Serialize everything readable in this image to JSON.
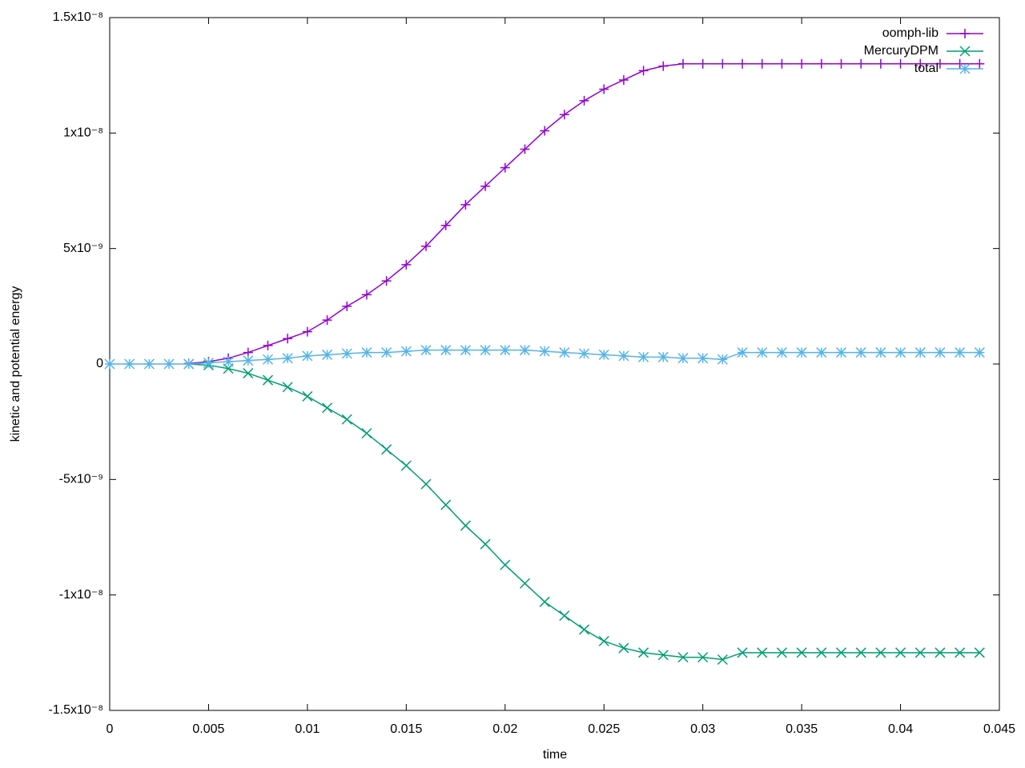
{
  "chart_data": {
    "type": "line",
    "x_label": "time",
    "y_label": "kinetic and potential energy",
    "x": [
      0,
      0.001,
      0.002,
      0.003,
      0.004,
      0.005,
      0.006,
      0.007,
      0.008,
      0.009,
      0.01,
      0.011,
      0.012,
      0.013,
      0.014,
      0.015,
      0.016,
      0.017,
      0.018,
      0.019,
      0.02,
      0.021,
      0.022,
      0.023,
      0.024,
      0.025,
      0.026,
      0.027,
      0.028,
      0.029,
      0.03,
      0.031,
      0.032,
      0.033,
      0.034,
      0.035,
      0.036,
      0.037,
      0.038,
      0.039,
      0.04,
      0.041,
      0.042,
      0.043,
      0.044
    ],
    "series": [
      {
        "name": "oomph-lib",
        "color": "#9400d3",
        "marker": "plus",
        "values": [
          null,
          null,
          null,
          null,
          2e-11,
          1e-10,
          2.5e-10,
          5e-10,
          8e-10,
          1.1e-09,
          1.4e-09,
          1.9e-09,
          2.5e-09,
          3e-09,
          3.6e-09,
          4.3e-09,
          5.1e-09,
          6e-09,
          6.9e-09,
          7.7e-09,
          8.5e-09,
          9.3e-09,
          1.01e-08,
          1.08e-08,
          1.14e-08,
          1.19e-08,
          1.23e-08,
          1.27e-08,
          1.29e-08,
          1.3e-08,
          1.3e-08,
          1.3e-08,
          1.3e-08,
          1.3e-08,
          1.3e-08,
          1.3e-08,
          1.3e-08,
          1.3e-08,
          1.3e-08,
          1.3e-08,
          1.3e-08,
          1.3e-08,
          1.3e-08,
          1.3e-08,
          1.3e-08
        ]
      },
      {
        "name": "MercuryDPM",
        "color": "#009e73",
        "marker": "cross",
        "values": [
          null,
          null,
          null,
          null,
          0,
          -5e-11,
          -2e-10,
          -4e-10,
          -7e-10,
          -1e-09,
          -1.4e-09,
          -1.9e-09,
          -2.4e-09,
          -3e-09,
          -3.7e-09,
          -4.4e-09,
          -5.2e-09,
          -6.1e-09,
          -7e-09,
          -7.8e-09,
          -8.7e-09,
          -9.5e-09,
          -1.03e-08,
          -1.09e-08,
          -1.15e-08,
          -1.2e-08,
          -1.23e-08,
          -1.25e-08,
          -1.26e-08,
          -1.27e-08,
          -1.27e-08,
          -1.28e-08,
          -1.25e-08,
          -1.25e-08,
          -1.25e-08,
          -1.25e-08,
          -1.25e-08,
          -1.25e-08,
          -1.25e-08,
          -1.25e-08,
          -1.25e-08,
          -1.25e-08,
          -1.25e-08,
          -1.25e-08,
          -1.25e-08
        ]
      },
      {
        "name": "total",
        "color": "#56b4e9",
        "marker": "star",
        "values": [
          0,
          0,
          0,
          0,
          0,
          5e-11,
          1e-10,
          1.5e-10,
          2e-10,
          2.5e-10,
          3.5e-10,
          4e-10,
          4.5e-10,
          5e-10,
          5e-10,
          5.5e-10,
          6e-10,
          6e-10,
          6e-10,
          6e-10,
          6e-10,
          6e-10,
          5.5e-10,
          5e-10,
          4.5e-10,
          4e-10,
          3.5e-10,
          3e-10,
          3e-10,
          2.5e-10,
          2.5e-10,
          2e-10,
          5e-10,
          5e-10,
          5e-10,
          5e-10,
          5e-10,
          5e-10,
          5e-10,
          5e-10,
          5e-10,
          5e-10,
          5e-10,
          5e-10,
          5e-10
        ]
      }
    ],
    "xlim": [
      0,
      0.045
    ],
    "xticks": [
      0,
      0.005,
      0.01,
      0.015,
      0.02,
      0.025,
      0.03,
      0.035,
      0.04,
      0.045
    ],
    "ylim": [
      -1.5e-08,
      1.5e-08
    ],
    "yticks": [
      {
        "value": -1.5e-08,
        "label": "-1.5x10⁻⁸"
      },
      {
        "value": -1e-08,
        "label": "-1x10⁻⁸"
      },
      {
        "value": -5e-09,
        "label": "-5x10⁻⁹"
      },
      0,
      {
        "value": 5e-09,
        "label": "5x10⁻⁹"
      },
      {
        "value": 1e-08,
        "label": "1x10⁻⁸"
      },
      {
        "value": 1.5e-08,
        "label": "1.5x10⁻⁸"
      }
    ],
    "legend": "top right"
  }
}
